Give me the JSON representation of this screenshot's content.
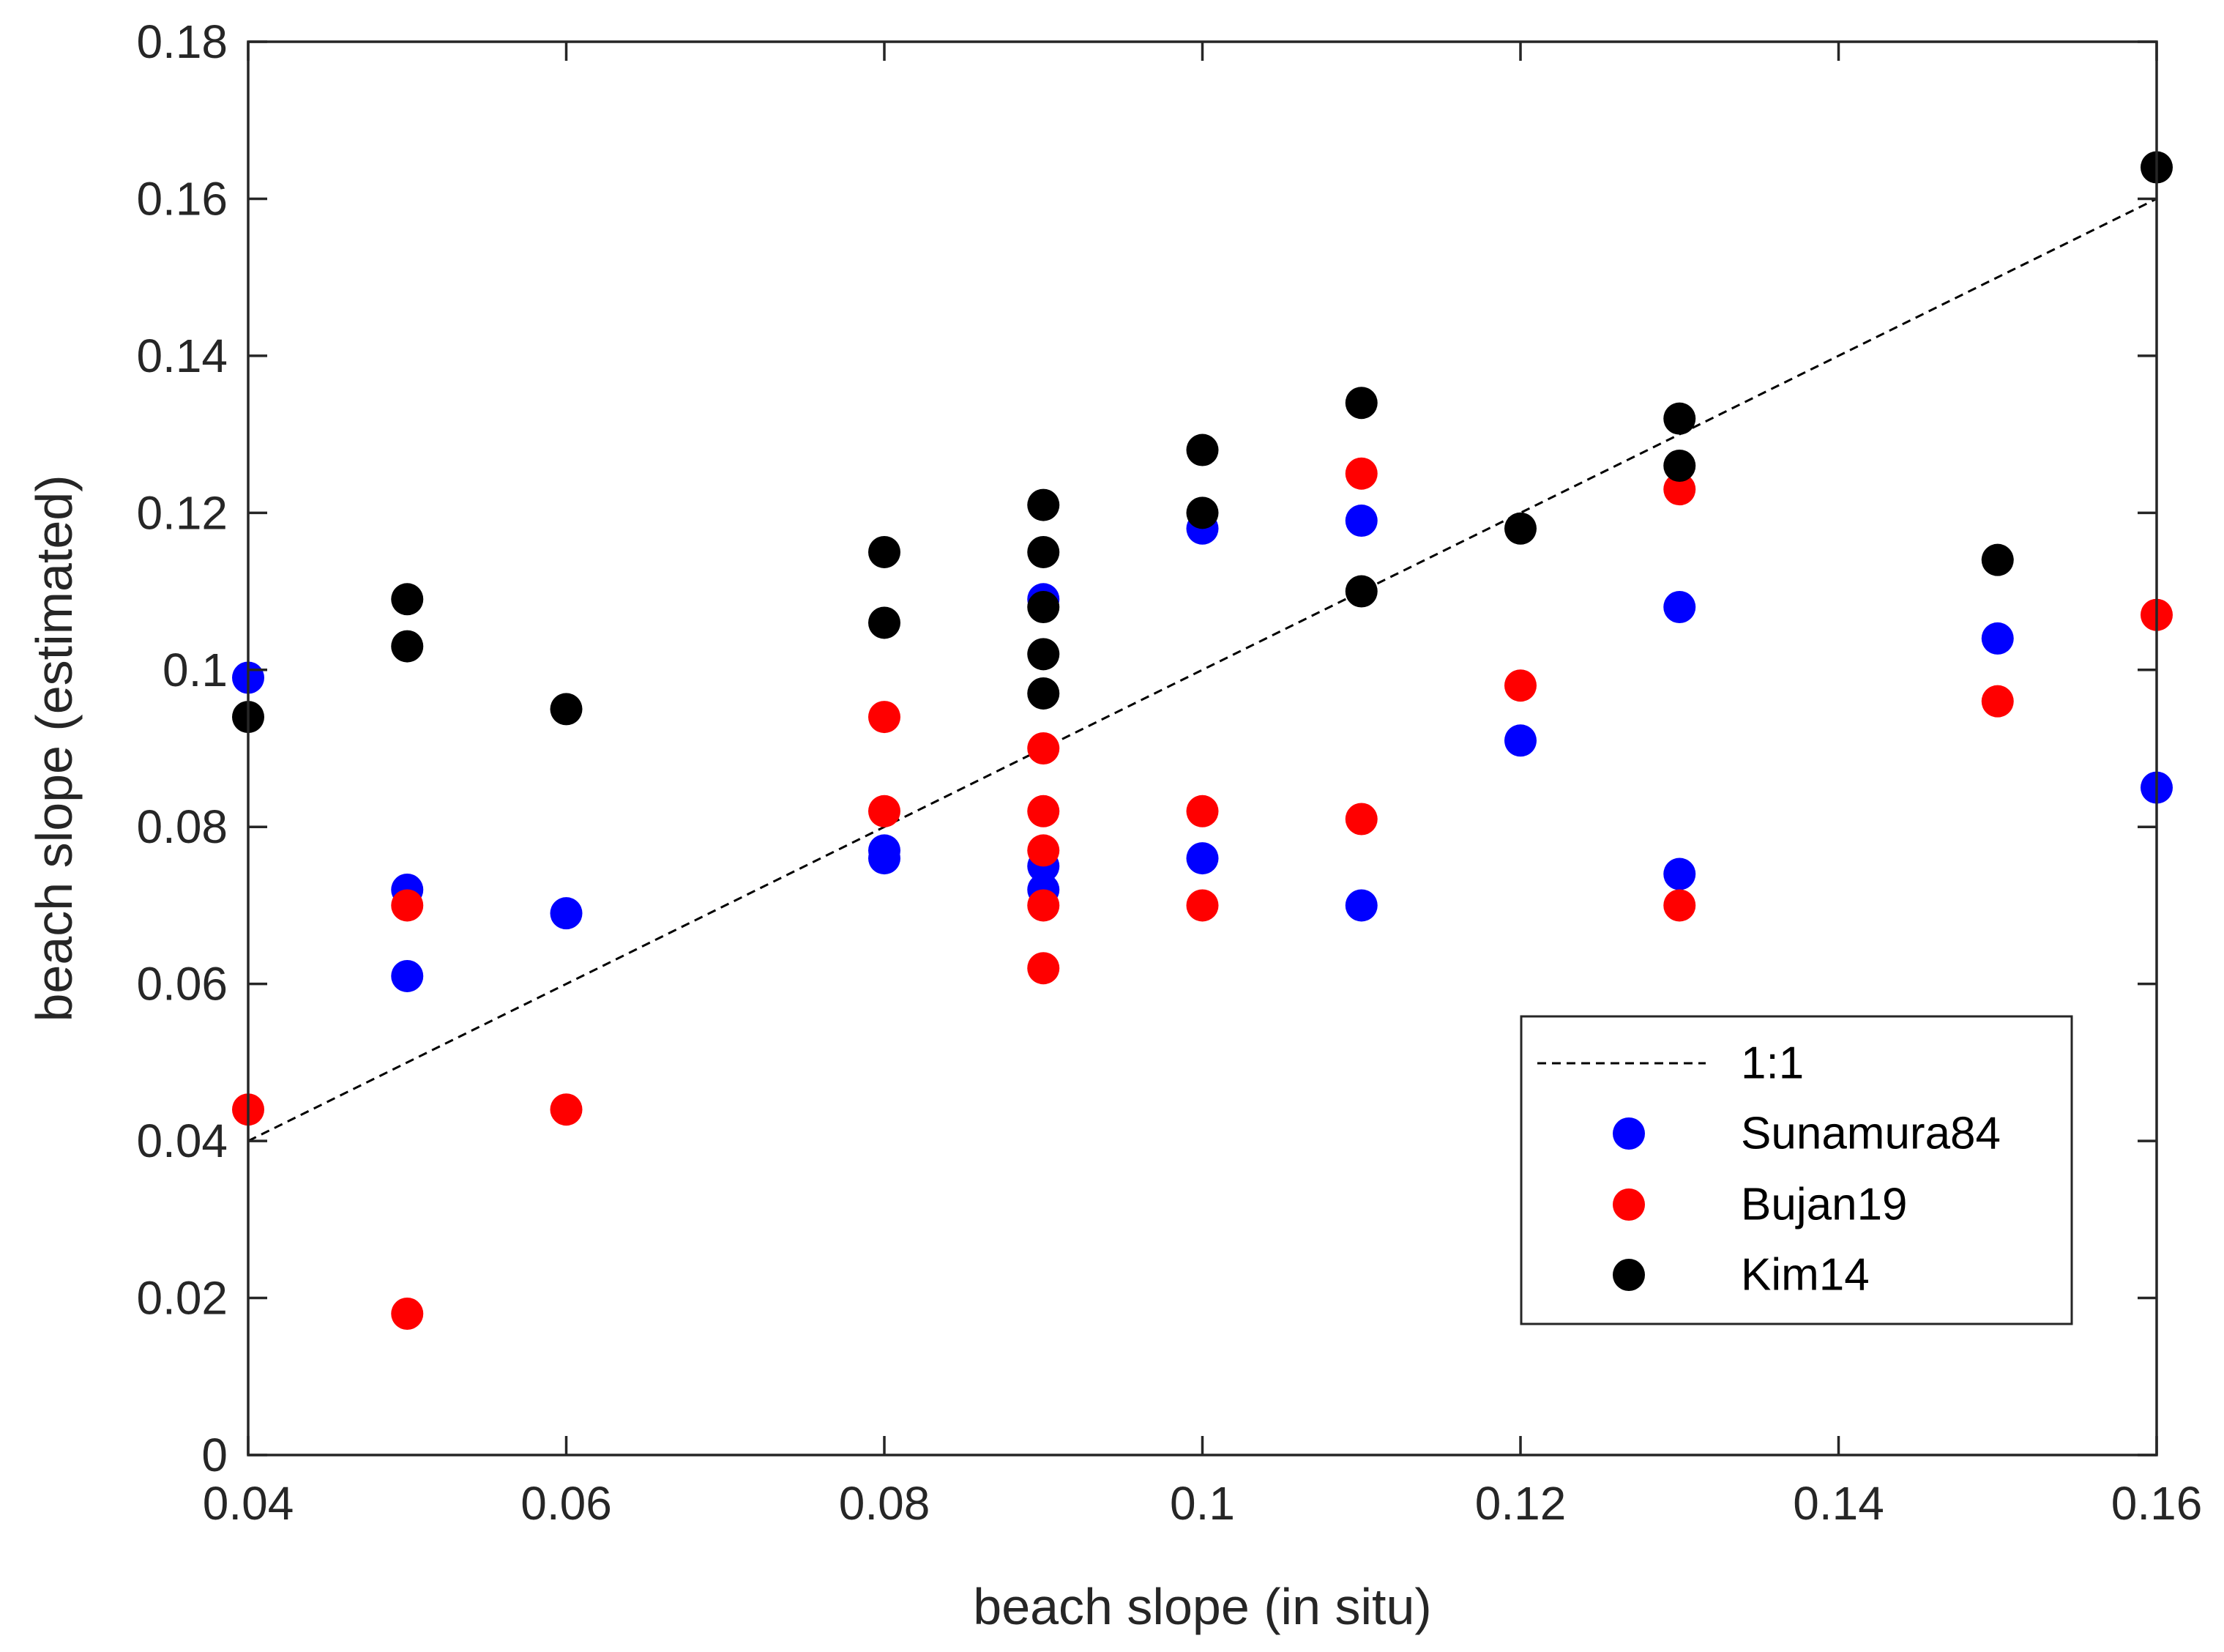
{
  "chart_data": {
    "type": "scatter",
    "title": "",
    "xlabel": "beach slope (in situ)",
    "ylabel": "beach slope (estimated)",
    "xlim": [
      0.04,
      0.16
    ],
    "ylim": [
      0,
      0.18
    ],
    "xticks": [
      0.04,
      0.06,
      0.08,
      0.1,
      0.12,
      0.14,
      0.16
    ],
    "xtick_labels": [
      "0.04",
      "0.06",
      "0.08",
      "0.1",
      "0.12",
      "0.14",
      "0.16"
    ],
    "yticks": [
      0,
      0.02,
      0.04,
      0.06,
      0.08,
      0.1,
      0.12,
      0.14,
      0.16,
      0.18
    ],
    "ytick_labels": [
      "0",
      "0.02",
      "0.04",
      "0.06",
      "0.08",
      "0.1",
      "0.12",
      "0.14",
      "0.16",
      "0.18"
    ],
    "grid": false,
    "legend_position": "bottom-right",
    "reference_line": {
      "name": "1:1",
      "x": [
        0.04,
        0.16
      ],
      "y": [
        0.04,
        0.16
      ],
      "color": "#000000",
      "style": "dashed"
    },
    "series": [
      {
        "name": "Sunamura84",
        "color": "#0000ff",
        "points": [
          [
            0.04,
            0.099
          ],
          [
            0.05,
            0.072
          ],
          [
            0.05,
            0.061
          ],
          [
            0.06,
            0.069
          ],
          [
            0.08,
            0.077
          ],
          [
            0.08,
            0.076
          ],
          [
            0.09,
            0.109
          ],
          [
            0.09,
            0.075
          ],
          [
            0.09,
            0.072
          ],
          [
            0.1,
            0.118
          ],
          [
            0.1,
            0.076
          ],
          [
            0.11,
            0.119
          ],
          [
            0.11,
            0.07
          ],
          [
            0.12,
            0.091
          ],
          [
            0.13,
            0.108
          ],
          [
            0.13,
            0.074
          ],
          [
            0.15,
            0.104
          ],
          [
            0.16,
            0.085
          ]
        ]
      },
      {
        "name": "Bujan19",
        "color": "#ff0000",
        "points": [
          [
            0.04,
            0.044
          ],
          [
            0.05,
            0.07
          ],
          [
            0.05,
            0.018
          ],
          [
            0.06,
            0.044
          ],
          [
            0.08,
            0.094
          ],
          [
            0.08,
            0.082
          ],
          [
            0.09,
            0.09
          ],
          [
            0.09,
            0.082
          ],
          [
            0.09,
            0.077
          ],
          [
            0.09,
            0.07
          ],
          [
            0.09,
            0.062
          ],
          [
            0.1,
            0.082
          ],
          [
            0.1,
            0.07
          ],
          [
            0.11,
            0.125
          ],
          [
            0.11,
            0.081
          ],
          [
            0.12,
            0.098
          ],
          [
            0.13,
            0.123
          ],
          [
            0.13,
            0.07
          ],
          [
            0.15,
            0.096
          ],
          [
            0.16,
            0.107
          ]
        ]
      },
      {
        "name": "Kim14",
        "color": "#000000",
        "points": [
          [
            0.04,
            0.094
          ],
          [
            0.05,
            0.109
          ],
          [
            0.05,
            0.103
          ],
          [
            0.06,
            0.095
          ],
          [
            0.08,
            0.115
          ],
          [
            0.08,
            0.106
          ],
          [
            0.09,
            0.121
          ],
          [
            0.09,
            0.115
          ],
          [
            0.09,
            0.108
          ],
          [
            0.09,
            0.102
          ],
          [
            0.09,
            0.097
          ],
          [
            0.1,
            0.128
          ],
          [
            0.1,
            0.12
          ],
          [
            0.11,
            0.134
          ],
          [
            0.11,
            0.11
          ],
          [
            0.12,
            0.118
          ],
          [
            0.13,
            0.132
          ],
          [
            0.13,
            0.126
          ],
          [
            0.15,
            0.114
          ],
          [
            0.16,
            0.164
          ]
        ]
      }
    ]
  }
}
